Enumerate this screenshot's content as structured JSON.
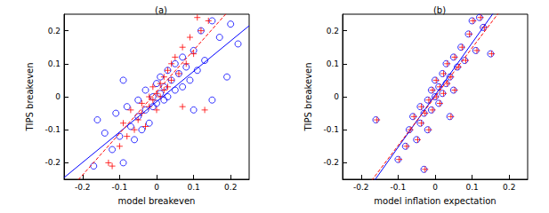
{
  "chart_data": [
    {
      "type": "scatter",
      "title": "(a)",
      "x_label": "model breakeven",
      "y_label": "TIPS breakeven",
      "xlim": [
        -0.25,
        0.25
      ],
      "ylim": [
        -0.25,
        0.25
      ],
      "xticks": [
        -0.2,
        -0.1,
        0,
        0.1,
        0.2
      ],
      "yticks": [
        -0.2,
        -0.1,
        0,
        0.1,
        0.2
      ],
      "grid": false,
      "series": [
        {
          "type": "scatter",
          "color": "#0000ff",
          "marker": "circle",
          "points": [
            [
              -0.17,
              -0.21
            ],
            [
              -0.16,
              -0.07
            ],
            [
              -0.14,
              -0.11
            ],
            [
              -0.12,
              -0.16
            ],
            [
              -0.11,
              -0.05
            ],
            [
              -0.1,
              -0.12
            ],
            [
              -0.09,
              -0.2
            ],
            [
              -0.08,
              -0.03
            ],
            [
              -0.07,
              -0.09
            ],
            [
              -0.06,
              -0.13
            ],
            [
              -0.05,
              -0.01
            ],
            [
              -0.05,
              -0.06
            ],
            [
              -0.04,
              -0.1
            ],
            [
              -0.03,
              0.02
            ],
            [
              -0.03,
              -0.04
            ],
            [
              -0.02,
              -0.08
            ],
            [
              -0.01,
              0.0
            ],
            [
              -0.01,
              -0.03
            ],
            [
              0.0,
              0.04
            ],
            [
              0.0,
              -0.02
            ],
            [
              0.01,
              0.01
            ],
            [
              0.01,
              0.06
            ],
            [
              0.02,
              -0.01
            ],
            [
              0.02,
              0.03
            ],
            [
              0.03,
              0.08
            ],
            [
              0.03,
              0.0
            ],
            [
              0.04,
              0.05
            ],
            [
              0.05,
              0.1
            ],
            [
              0.05,
              0.02
            ],
            [
              0.06,
              0.07
            ],
            [
              0.07,
              0.12
            ],
            [
              0.07,
              0.03
            ],
            [
              0.08,
              0.09
            ],
            [
              0.09,
              0.05
            ],
            [
              0.1,
              0.14
            ],
            [
              0.11,
              0.08
            ],
            [
              0.12,
              0.2
            ],
            [
              0.13,
              0.11
            ],
            [
              0.15,
              0.23
            ],
            [
              0.17,
              0.18
            ],
            [
              0.19,
              0.06
            ],
            [
              0.2,
              0.22
            ],
            [
              0.22,
              0.16
            ],
            [
              0.1,
              -0.04
            ],
            [
              -0.09,
              0.05
            ],
            [
              0.15,
              -0.01
            ]
          ]
        },
        {
          "type": "scatter",
          "color": "#ff0000",
          "marker": "plus",
          "points": [
            [
              -0.13,
              -0.2
            ],
            [
              -0.1,
              -0.15
            ],
            [
              -0.09,
              -0.08
            ],
            [
              -0.08,
              -0.12
            ],
            [
              -0.07,
              -0.04
            ],
            [
              -0.06,
              -0.1
            ],
            [
              -0.05,
              -0.07
            ],
            [
              -0.04,
              -0.02
            ],
            [
              -0.04,
              -0.05
            ],
            [
              -0.03,
              -0.09
            ],
            [
              -0.02,
              0.0
            ],
            [
              -0.02,
              -0.03
            ],
            [
              -0.01,
              0.03
            ],
            [
              -0.01,
              -0.01
            ],
            [
              0.0,
              0.01
            ],
            [
              0.0,
              -0.04
            ],
            [
              0.01,
              0.04
            ],
            [
              0.01,
              0.0
            ],
            [
              0.02,
              0.06
            ],
            [
              0.02,
              0.02
            ],
            [
              0.03,
              0.08
            ],
            [
              0.03,
              0.03
            ],
            [
              0.04,
              0.1
            ],
            [
              0.04,
              0.05
            ],
            [
              0.05,
              0.12
            ],
            [
              0.06,
              0.07
            ],
            [
              0.07,
              0.15
            ],
            [
              0.08,
              0.1
            ],
            [
              0.09,
              0.18
            ],
            [
              0.1,
              0.13
            ],
            [
              0.11,
              0.24
            ],
            [
              0.12,
              0.2
            ],
            [
              0.14,
              0.23
            ],
            [
              0.13,
              -0.04
            ],
            [
              -0.12,
              -0.21
            ],
            [
              0.07,
              -0.03
            ]
          ]
        },
        {
          "type": "line",
          "color": "#0000ff",
          "line_style": "solid",
          "points": [
            [
              -0.25,
              -0.245
            ],
            [
              0.25,
              0.215
            ]
          ]
        },
        {
          "type": "line",
          "color": "#ff0000",
          "line_style": "dashed",
          "points": [
            [
              -0.25,
              -0.3
            ],
            [
              0.25,
              0.33
            ]
          ]
        }
      ]
    },
    {
      "type": "scatter",
      "title": "(b)",
      "x_label": "model inflation expectation",
      "y_label": "TIPS breakeven",
      "xlim": [
        -0.25,
        0.25
      ],
      "ylim": [
        -0.25,
        0.25
      ],
      "xticks": [
        -0.2,
        -0.1,
        0,
        0.1,
        0.2
      ],
      "yticks": [
        -0.2,
        -0.1,
        0,
        0.1,
        0.2
      ],
      "grid": false,
      "series": [
        {
          "type": "scatter",
          "color": "#0000ff",
          "marker": "circle",
          "points": [
            [
              -0.16,
              -0.07
            ],
            [
              -0.1,
              -0.19
            ],
            [
              -0.08,
              -0.15
            ],
            [
              -0.07,
              -0.1
            ],
            [
              -0.06,
              -0.06
            ],
            [
              -0.05,
              -0.13
            ],
            [
              -0.04,
              -0.03
            ],
            [
              -0.04,
              -0.08
            ],
            [
              -0.03,
              -0.05
            ],
            [
              -0.02,
              -0.01
            ],
            [
              -0.02,
              -0.1
            ],
            [
              -0.01,
              0.02
            ],
            [
              -0.01,
              -0.04
            ],
            [
              0.0,
              0.0
            ],
            [
              0.0,
              0.05
            ],
            [
              0.01,
              -0.02
            ],
            [
              0.01,
              0.03
            ],
            [
              0.02,
              0.07
            ],
            [
              0.02,
              0.01
            ],
            [
              0.03,
              0.04
            ],
            [
              0.03,
              0.1
            ],
            [
              0.04,
              0.06
            ],
            [
              0.05,
              0.12
            ],
            [
              0.05,
              0.02
            ],
            [
              0.06,
              0.09
            ],
            [
              0.07,
              0.15
            ],
            [
              0.08,
              0.11
            ],
            [
              0.09,
              0.19
            ],
            [
              0.1,
              0.23
            ],
            [
              0.11,
              0.14
            ],
            [
              0.12,
              0.24
            ],
            [
              0.13,
              0.21
            ],
            [
              0.15,
              0.13
            ],
            [
              -0.03,
              -0.22
            ],
            [
              0.04,
              -0.06
            ]
          ]
        },
        {
          "type": "scatter",
          "color": "#ff0000",
          "marker": "plus",
          "points": [
            [
              -0.157,
              -0.07
            ],
            [
              -0.097,
              -0.19
            ],
            [
              -0.077,
              -0.15
            ],
            [
              -0.067,
              -0.1
            ],
            [
              -0.057,
              -0.06
            ],
            [
              -0.047,
              -0.13
            ],
            [
              -0.037,
              -0.03
            ],
            [
              -0.037,
              -0.08
            ],
            [
              -0.027,
              -0.05
            ],
            [
              -0.017,
              -0.01
            ],
            [
              -0.017,
              -0.1
            ],
            [
              -0.007,
              0.02
            ],
            [
              -0.007,
              -0.04
            ],
            [
              0.003,
              0.0
            ],
            [
              0.003,
              0.05
            ],
            [
              0.013,
              -0.02
            ],
            [
              0.013,
              0.03
            ],
            [
              0.023,
              0.07
            ],
            [
              0.023,
              0.01
            ],
            [
              0.033,
              0.04
            ],
            [
              0.033,
              0.1
            ],
            [
              0.043,
              0.06
            ],
            [
              0.053,
              0.12
            ],
            [
              0.053,
              0.02
            ],
            [
              0.063,
              0.09
            ],
            [
              0.073,
              0.15
            ],
            [
              0.083,
              0.11
            ],
            [
              0.093,
              0.19
            ],
            [
              0.103,
              0.23
            ],
            [
              0.113,
              0.14
            ],
            [
              0.123,
              0.24
            ],
            [
              0.133,
              0.21
            ],
            [
              0.153,
              0.13
            ],
            [
              -0.027,
              -0.22
            ],
            [
              0.043,
              -0.06
            ]
          ]
        },
        {
          "type": "line",
          "color": "#0000ff",
          "line_style": "solid",
          "points": [
            [
              -0.25,
              -0.39
            ],
            [
              0.25,
              0.4
            ]
          ]
        },
        {
          "type": "line",
          "color": "#ff0000",
          "line_style": "dashed",
          "points": [
            [
              -0.25,
              -0.37
            ],
            [
              0.25,
              0.37
            ]
          ]
        }
      ]
    }
  ]
}
